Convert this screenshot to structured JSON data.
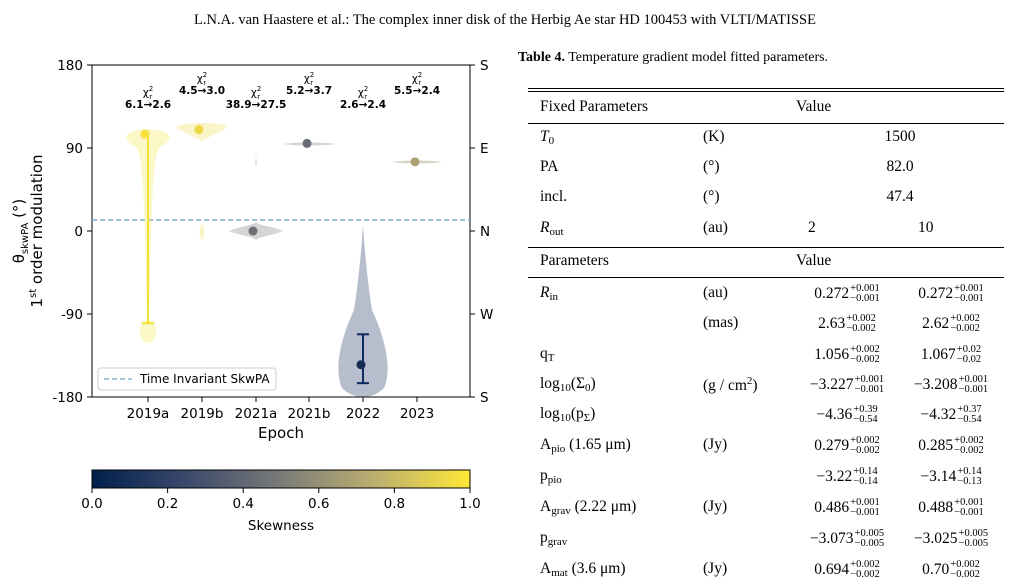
{
  "header": "L.N.A. van Haastere et al.: The complex inner disk of the Herbig Ae star HD 100453 with VLTI/MATISSE",
  "figure": {
    "ylabel_line1": "θ",
    "ylabel_sub": "skwPA",
    "ylabel_unit": " (°)",
    "ylabel_line2_pre": "1",
    "ylabel_line2_sup": "st",
    "ylabel_line2_post": " order modulation",
    "xlabel": "Epoch",
    "yticks": [
      "180",
      "90",
      "0",
      "-90",
      "-180"
    ],
    "right_ticks": [
      "S",
      "E",
      "N",
      "W",
      "S"
    ],
    "epochs": [
      "2019a",
      "2019b",
      "2021a",
      "2021b",
      "2022",
      "2023"
    ],
    "chi_label": "χ",
    "chi_sub": "r",
    "chi_sup": "2",
    "chi_values": [
      "6.1→2.6",
      "4.5→3.0",
      "38.9→27.5",
      "5.2→3.7",
      "2.6→2.4",
      "5.5→2.4"
    ],
    "legend_label": "Time Invariant SkwPA",
    "invariant_value": 12,
    "colorbar_label": "Skewness",
    "colorbar_ticks": [
      "0.0",
      "0.2",
      "0.4",
      "0.6",
      "0.8",
      "1.0"
    ],
    "colors": {
      "low": "#0d2a5e",
      "mid": "#7a7b78",
      "high": "#f5e132",
      "dash": "#6fa8c8"
    }
  },
  "chart_data": {
    "type": "violin",
    "xlabel": "Epoch",
    "categories": [
      "2019a",
      "2019b",
      "2021a",
      "2021b",
      "2022",
      "2023"
    ],
    "ylim": [
      -180,
      180
    ],
    "yticks": [
      180,
      90,
      0,
      -90,
      -180
    ],
    "median": [
      105,
      110,
      0,
      95,
      -145,
      75
    ],
    "skewness": [
      0.97,
      0.93,
      0.45,
      0.42,
      0.08,
      0.68
    ],
    "errorbar": [
      [
        -100,
        105
      ],
      null,
      null,
      null,
      [
        -165,
        -112
      ],
      null
    ],
    "chi2_before": [
      6.1,
      4.5,
      38.9,
      5.2,
      2.6,
      5.5
    ],
    "chi2_after": [
      2.6,
      3.0,
      27.5,
      3.7,
      2.4,
      2.4
    ],
    "reference_line": {
      "label": "Time Invariant SkwPA",
      "value": 12
    },
    "colorbar": {
      "label": "Skewness",
      "range": [
        0,
        1
      ]
    }
  },
  "table": {
    "caption_bold": "Table 4.",
    "caption_text": " Temperature gradient model fitted parameters.",
    "fixed_head": {
      "name": "Fixed Parameters",
      "value": "Value"
    },
    "T0": {
      "name": "T",
      "sub": "0",
      "unit": "(K)",
      "value": "1500"
    },
    "PA": {
      "name": "PA",
      "unit": "(°)",
      "value": "82.0"
    },
    "incl": {
      "name": "incl.",
      "unit": "(°)",
      "value": "47.4"
    },
    "Rout": {
      "name": "R",
      "sub": "out",
      "unit": "(au)",
      "v1": "2",
      "v2": "10"
    },
    "param_head": {
      "name": "Parameters",
      "value": "Value"
    },
    "Rin": {
      "name": "R",
      "sub": "in",
      "unit": "(au)",
      "v1": "0.272",
      "v1u": "+0.001",
      "v1l": "−0.001",
      "v2": "0.272",
      "v2u": "+0.001",
      "v2l": "−0.001"
    },
    "Rin_mas": {
      "unit": "(mas)",
      "v1": "2.63",
      "v1u": "+0.002",
      "v1l": "−0.002",
      "v2": "2.62",
      "v2u": "+0.002",
      "v2l": "−0.002"
    },
    "qT": {
      "name": "q",
      "sub": "T",
      "v1": "1.056",
      "v1u": "+0.002",
      "v1l": "−0.002",
      "v2": "1.067",
      "v2u": "+0.02",
      "v2l": "−0.02"
    },
    "logSigma": {
      "name": "log",
      "sub": "10",
      "post": "(Σ",
      "sub2": "0",
      "post2": ")",
      "unit": "(g / cm",
      "unit_sup": "2",
      "unit_post": ")",
      "v1": "−3.227",
      "v1u": "+0.001",
      "v1l": "−0.001",
      "v2": "−3.208",
      "v2u": "+0.001",
      "v2l": "−0.001"
    },
    "logp": {
      "name": "log",
      "sub": "10",
      "post": "(p",
      "sub2": "Σ",
      "post2": ")",
      "v1": "−4.36",
      "v1u": "+0.39",
      "v1l": "−0.54",
      "v2": "−4.32",
      "v2u": "+0.37",
      "v2l": "−0.54"
    },
    "Apio": {
      "name": "A",
      "sub": "pio",
      "post": " (1.65 μm)",
      "unit": "(Jy)",
      "v1": "0.279",
      "v1u": "+0.002",
      "v1l": "−0.002",
      "v2": "0.285",
      "v2u": "+0.002",
      "v2l": "−0.002"
    },
    "ppio": {
      "name": "p",
      "sub": "pio",
      "v1": "−3.22",
      "v1u": "+0.14",
      "v1l": "−0.14",
      "v2": "−3.14",
      "v2u": "+0.14",
      "v2l": "−0.13"
    },
    "Agrav": {
      "name": "A",
      "sub": "grav",
      "post": " (2.22 μm)",
      "unit": "(Jy)",
      "v1": "0.486",
      "v1u": "+0.001",
      "v1l": "−0.001",
      "v2": "0.488",
      "v2u": "+0.001",
      "v2l": "−0.001"
    },
    "pgrav": {
      "name": "p",
      "sub": "grav",
      "v1": "−3.073",
      "v1u": "+0.005",
      "v1l": "−0.005",
      "v2": "−3.025",
      "v2u": "+0.005",
      "v2l": "−0.005"
    },
    "Amat": {
      "name": "A",
      "sub": "mat",
      "post": " (3.6 μm)",
      "unit": "(Jy)",
      "v1": "0.694",
      "v1u": "+0.002",
      "v1l": "−0.002",
      "v2": "0.70",
      "v2u": "+0.002",
      "v2l": "−0.002"
    }
  }
}
